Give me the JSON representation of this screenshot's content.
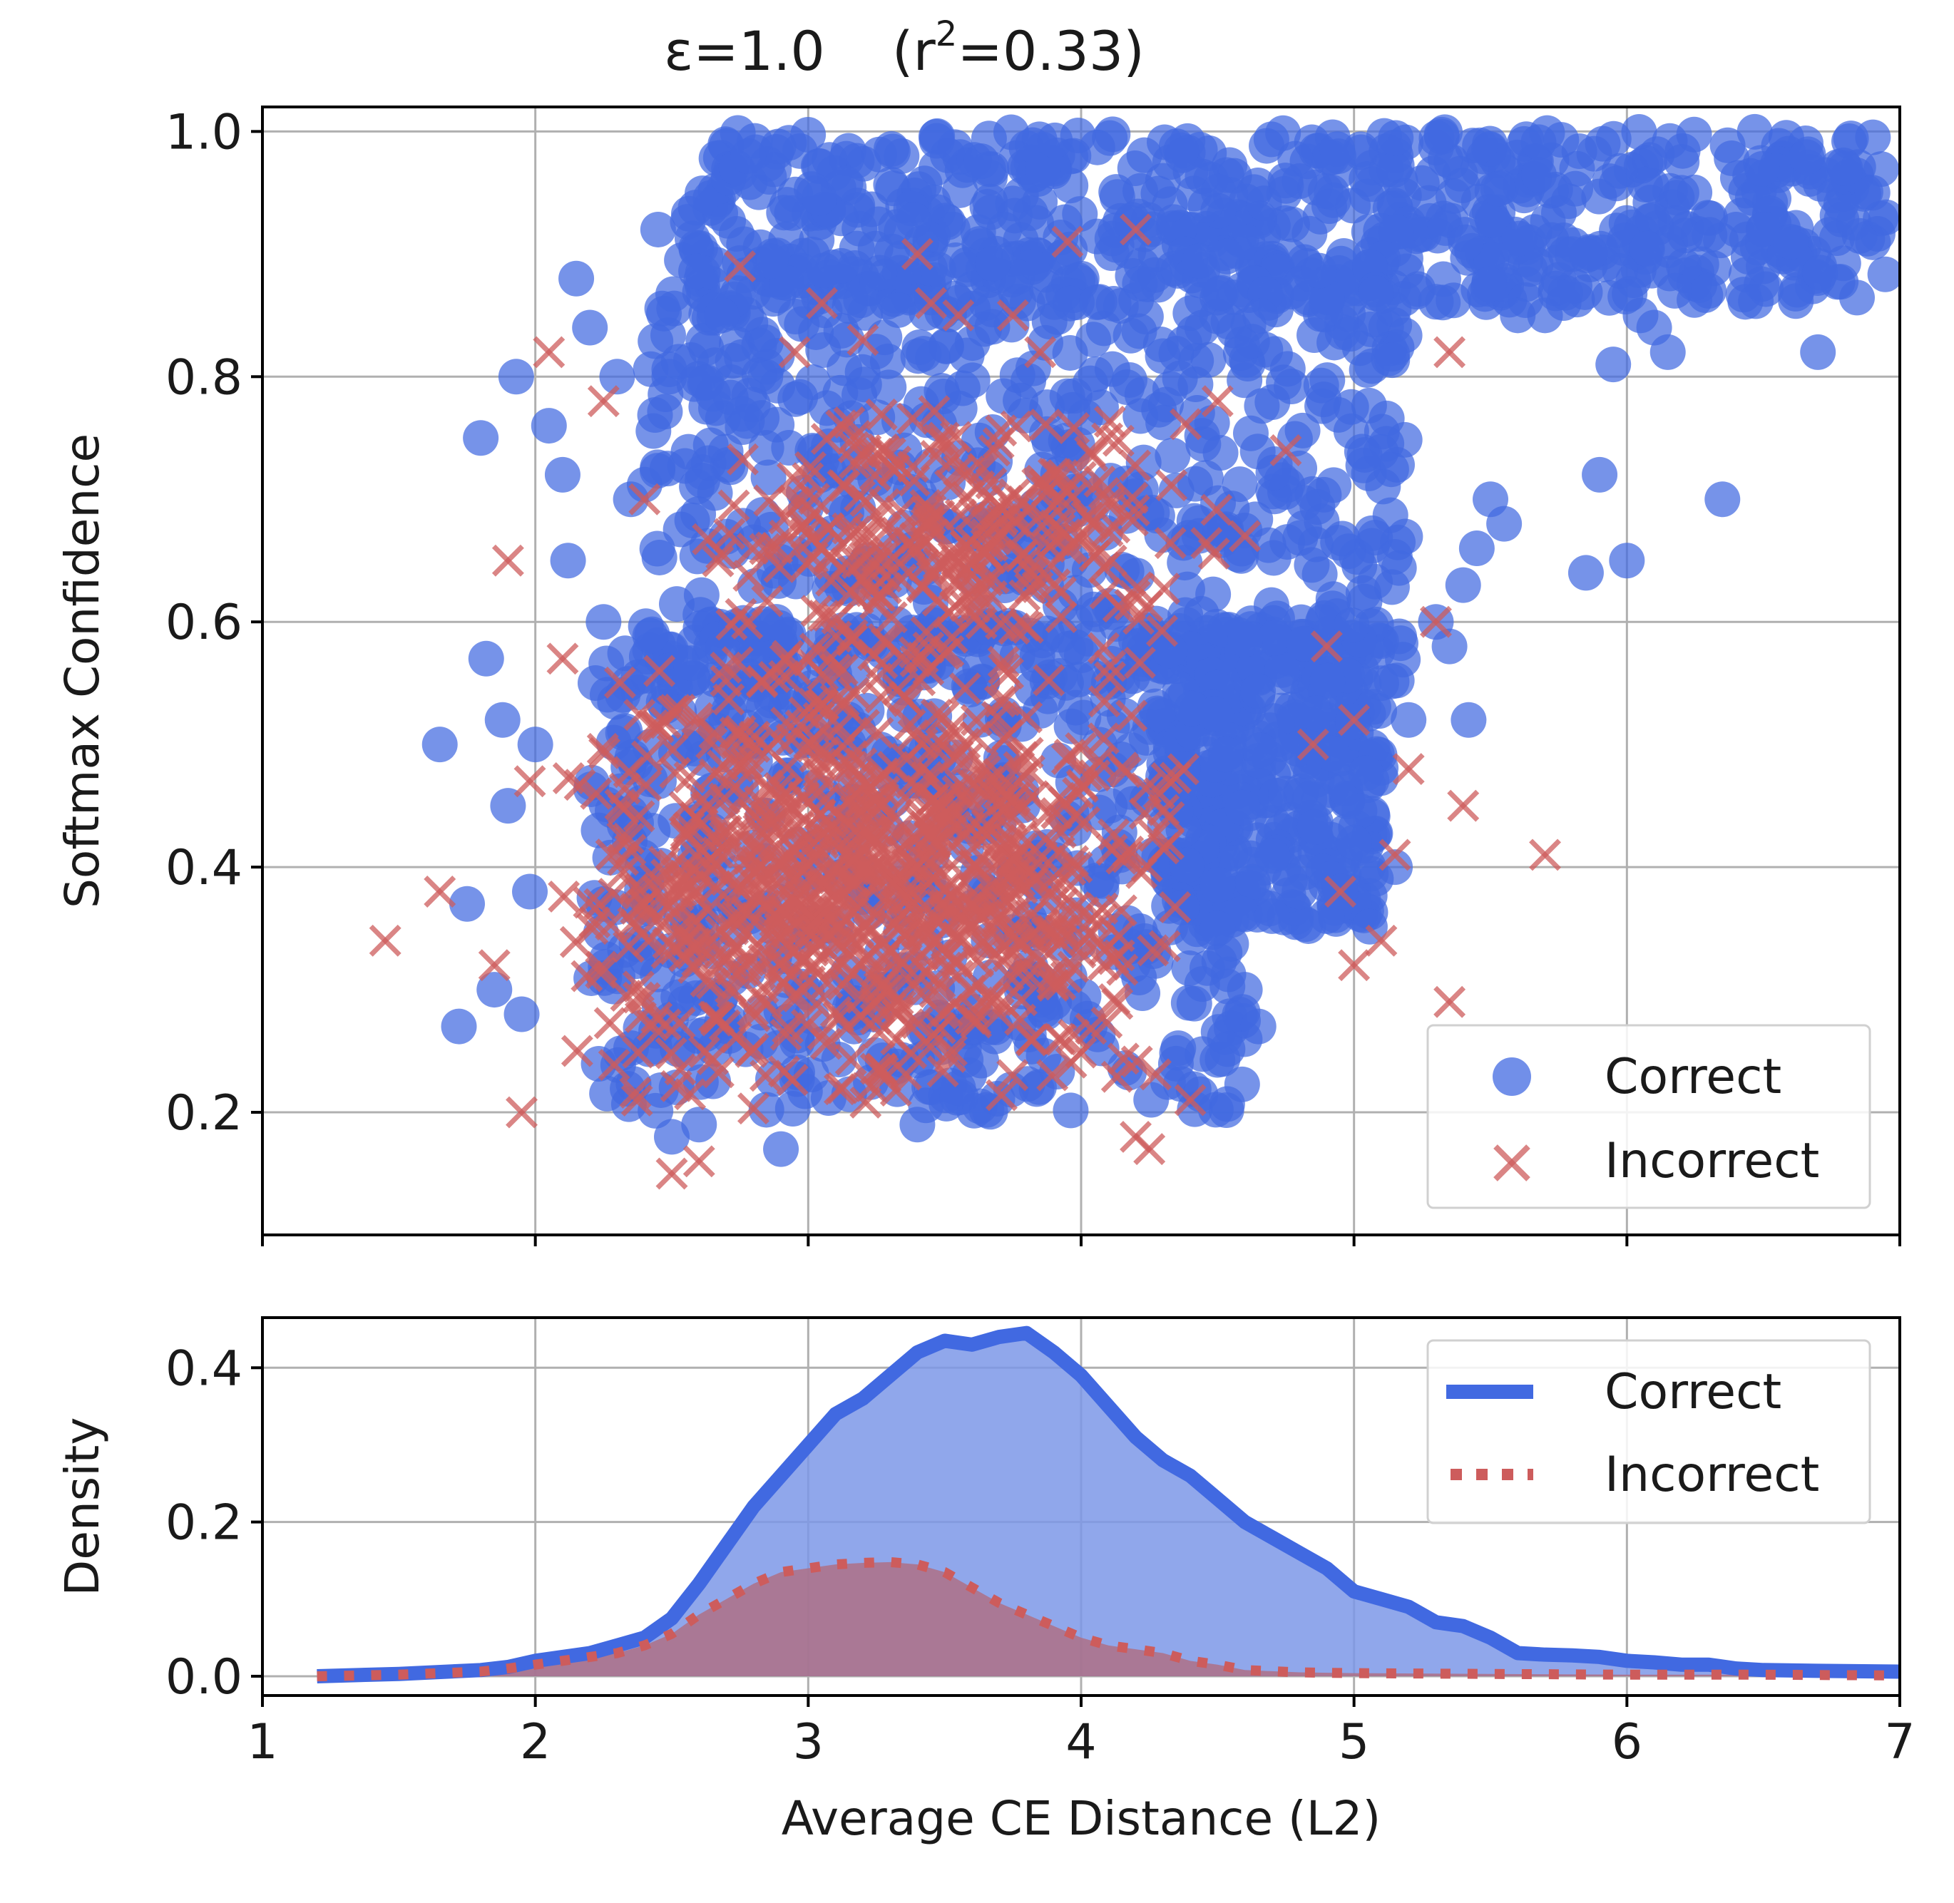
{
  "chart_data": [
    {
      "type": "scatter",
      "title_prefix": "ε=1.0",
      "title_suffix": "(r",
      "title_sup": "2",
      "title_end": "=0.33)",
      "ylabel": "Softmax Confidence",
      "xlim": [
        1,
        7
      ],
      "ylim": [
        0.1,
        1.02
      ],
      "yticks": [
        "0.2",
        "0.4",
        "0.6",
        "0.8",
        "1.0"
      ],
      "ytick_values": [
        0.2,
        0.4,
        0.6,
        0.8,
        1.0
      ],
      "grid": true,
      "legend": {
        "placement": "lower-right",
        "entries": [
          "Correct",
          "Incorrect"
        ]
      },
      "series": [
        {
          "name": "Correct",
          "marker": "circle",
          "color": "#4169e1",
          "points": [
            [
              1.65,
              0.5
            ],
            [
              1.72,
              0.27
            ],
            [
              1.75,
              0.37
            ],
            [
              1.8,
              0.75
            ],
            [
              1.82,
              0.57
            ],
            [
              1.85,
              0.3
            ],
            [
              1.88,
              0.52
            ],
            [
              1.9,
              0.45
            ],
            [
              1.93,
              0.8
            ],
            [
              1.95,
              0.28
            ],
            [
              1.98,
              0.38
            ],
            [
              2.0,
              0.5
            ],
            [
              2.05,
              0.76
            ],
            [
              2.1,
              0.72
            ],
            [
              2.12,
              0.65
            ],
            [
              2.15,
              0.88
            ],
            [
              2.2,
              0.84
            ],
            [
              2.25,
              0.6
            ],
            [
              2.3,
              0.8
            ],
            [
              2.35,
              0.7
            ],
            [
              2.45,
              0.92
            ],
            [
              2.5,
              0.18
            ],
            [
              2.6,
              0.19
            ],
            [
              2.78,
              0.98
            ],
            [
              2.9,
              0.17
            ],
            [
              3.4,
              0.19
            ],
            [
              5.1,
              0.55
            ],
            [
              5.15,
              0.4
            ],
            [
              5.2,
              0.52
            ],
            [
              5.3,
              0.6
            ],
            [
              5.35,
              0.58
            ],
            [
              5.4,
              0.63
            ],
            [
              5.42,
              0.52
            ],
            [
              5.45,
              0.66
            ],
            [
              5.5,
              0.7
            ],
            [
              5.55,
              0.68
            ],
            [
              5.6,
              0.85
            ],
            [
              5.7,
              0.85
            ],
            [
              5.8,
              0.9
            ],
            [
              5.85,
              0.64
            ],
            [
              5.9,
              0.72
            ],
            [
              5.95,
              0.81
            ],
            [
              6.0,
              0.65
            ],
            [
              6.05,
              0.85
            ],
            [
              6.1,
              0.84
            ],
            [
              6.15,
              0.82
            ],
            [
              6.2,
              0.95
            ],
            [
              6.3,
              0.87
            ],
            [
              6.35,
              0.7
            ],
            [
              6.4,
              0.92
            ],
            [
              6.5,
              0.92
            ],
            [
              6.6,
              0.91
            ],
            [
              6.7,
              0.82
            ],
            [
              6.8,
              0.97
            ],
            [
              6.9,
              0.95
            ],
            [
              6.95,
              0.93
            ],
            [
              4.5,
              0.35
            ],
            [
              4.6,
              0.3
            ],
            [
              4.65,
              0.27
            ],
            [
              4.7,
              0.36
            ],
            [
              4.8,
              0.38
            ],
            [
              4.9,
              0.36
            ],
            [
              5.0,
              0.42
            ],
            [
              4.95,
              0.38
            ],
            [
              4.75,
              0.46
            ]
          ],
          "dense_regions": [
            {
              "x_range": [
                2.55,
                6.95
              ],
              "y_range": [
                0.86,
                1.0
              ],
              "density": 1.0
            },
            {
              "x_range": [
                2.4,
                5.2
              ],
              "y_range": [
                0.55,
                0.9
              ],
              "density": 0.9
            },
            {
              "x_range": [
                2.2,
                4.6
              ],
              "y_range": [
                0.2,
                0.6
              ],
              "density": 0.9
            },
            {
              "x_range": [
                4.3,
                5.1
              ],
              "y_range": [
                0.35,
                0.6
              ],
              "density": 0.5
            }
          ]
        },
        {
          "name": "Incorrect",
          "marker": "x",
          "color": "#cd5c5c",
          "points": [
            [
              1.45,
              0.34
            ],
            [
              1.65,
              0.38
            ],
            [
              1.85,
              0.32
            ],
            [
              1.9,
              0.65
            ],
            [
              1.95,
              0.2
            ],
            [
              1.98,
              0.47
            ],
            [
              2.05,
              0.82
            ],
            [
              2.1,
              0.57
            ],
            [
              2.25,
              0.78
            ],
            [
              2.4,
              0.7
            ],
            [
              2.5,
              0.15
            ],
            [
              2.6,
              0.16
            ],
            [
              2.75,
              0.89
            ],
            [
              2.95,
              0.82
            ],
            [
              3.05,
              0.86
            ],
            [
              3.2,
              0.83
            ],
            [
              3.4,
              0.9
            ],
            [
              3.45,
              0.86
            ],
            [
              3.55,
              0.85
            ],
            [
              3.75,
              0.85
            ],
            [
              3.85,
              0.82
            ],
            [
              3.95,
              0.91
            ],
            [
              4.2,
              0.92
            ],
            [
              4.2,
              0.18
            ],
            [
              4.25,
              0.17
            ],
            [
              4.4,
              0.21
            ],
            [
              4.5,
              0.78
            ],
            [
              4.6,
              0.67
            ],
            [
              4.75,
              0.74
            ],
            [
              4.9,
              0.58
            ],
            [
              5.0,
              0.32
            ],
            [
              5.0,
              0.52
            ],
            [
              5.1,
              0.34
            ],
            [
              5.15,
              0.41
            ],
            [
              5.2,
              0.48
            ],
            [
              5.3,
              0.6
            ],
            [
              5.35,
              0.82
            ],
            [
              5.35,
              0.29
            ],
            [
              5.4,
              0.45
            ],
            [
              5.7,
              0.41
            ],
            [
              4.95,
              0.38
            ],
            [
              4.85,
              0.5
            ]
          ],
          "dense_regions": [
            {
              "x_range": [
                2.1,
                4.4
              ],
              "y_range": [
                0.2,
                0.58
              ],
              "density": 1.0
            },
            {
              "x_range": [
                2.6,
                4.5
              ],
              "y_range": [
                0.55,
                0.78
              ],
              "density": 0.35
            }
          ]
        }
      ]
    },
    {
      "type": "area",
      "ylabel": "Density",
      "xlabel": "Average CE Distance (L2)",
      "xlim": [
        1,
        7
      ],
      "ylim": [
        -0.025,
        0.465
      ],
      "xticks": [
        "1",
        "2",
        "3",
        "4",
        "5",
        "6",
        "7"
      ],
      "xtick_values": [
        1,
        2,
        3,
        4,
        5,
        6,
        7
      ],
      "yticks": [
        "0.0",
        "0.2",
        "0.4"
      ],
      "ytick_values": [
        0.0,
        0.2,
        0.4
      ],
      "grid": true,
      "legend": {
        "placement": "upper-right",
        "entries": [
          "Correct",
          "Incorrect"
        ]
      },
      "series": [
        {
          "name": "Correct",
          "style": "solid",
          "color": "#4169e1",
          "fill": "#7d98e8",
          "x": [
            1.2,
            1.5,
            1.8,
            1.9,
            2.0,
            2.1,
            2.2,
            2.3,
            2.4,
            2.5,
            2.6,
            2.7,
            2.8,
            2.9,
            3.0,
            3.1,
            3.2,
            3.3,
            3.4,
            3.5,
            3.6,
            3.7,
            3.8,
            3.9,
            4.0,
            4.1,
            4.2,
            4.3,
            4.4,
            4.5,
            4.6,
            4.7,
            4.8,
            4.9,
            5.0,
            5.1,
            5.2,
            5.3,
            5.4,
            5.5,
            5.6,
            5.7,
            5.8,
            5.9,
            6.0,
            6.1,
            6.2,
            6.3,
            6.4,
            6.5,
            6.7,
            7.0
          ],
          "values": [
            0.0,
            0.003,
            0.008,
            0.012,
            0.02,
            0.025,
            0.03,
            0.04,
            0.05,
            0.075,
            0.12,
            0.17,
            0.22,
            0.26,
            0.3,
            0.34,
            0.36,
            0.39,
            0.42,
            0.435,
            0.43,
            0.44,
            0.445,
            0.42,
            0.39,
            0.35,
            0.31,
            0.28,
            0.26,
            0.23,
            0.2,
            0.18,
            0.16,
            0.14,
            0.11,
            0.1,
            0.09,
            0.07,
            0.065,
            0.05,
            0.03,
            0.028,
            0.027,
            0.025,
            0.02,
            0.018,
            0.015,
            0.015,
            0.01,
            0.008,
            0.007,
            0.006
          ]
        },
        {
          "name": "Incorrect",
          "style": "dotted",
          "color": "#cd5c5c",
          "fill": "#b06d80",
          "x": [
            1.2,
            1.5,
            1.8,
            1.9,
            2.0,
            2.1,
            2.2,
            2.3,
            2.4,
            2.5,
            2.6,
            2.7,
            2.8,
            2.9,
            3.0,
            3.1,
            3.2,
            3.3,
            3.4,
            3.5,
            3.6,
            3.7,
            3.8,
            3.9,
            4.0,
            4.1,
            4.2,
            4.3,
            4.4,
            4.5,
            4.6,
            4.8,
            5.0,
            5.5,
            6.0,
            6.5,
            7.0
          ],
          "values": [
            0.0,
            0.002,
            0.006,
            0.01,
            0.015,
            0.02,
            0.025,
            0.03,
            0.04,
            0.055,
            0.08,
            0.1,
            0.12,
            0.135,
            0.14,
            0.145,
            0.147,
            0.148,
            0.145,
            0.135,
            0.115,
            0.095,
            0.08,
            0.065,
            0.05,
            0.04,
            0.035,
            0.03,
            0.02,
            0.015,
            0.008,
            0.005,
            0.004,
            0.003,
            0.002,
            0.002,
            0.001
          ]
        }
      ]
    }
  ]
}
